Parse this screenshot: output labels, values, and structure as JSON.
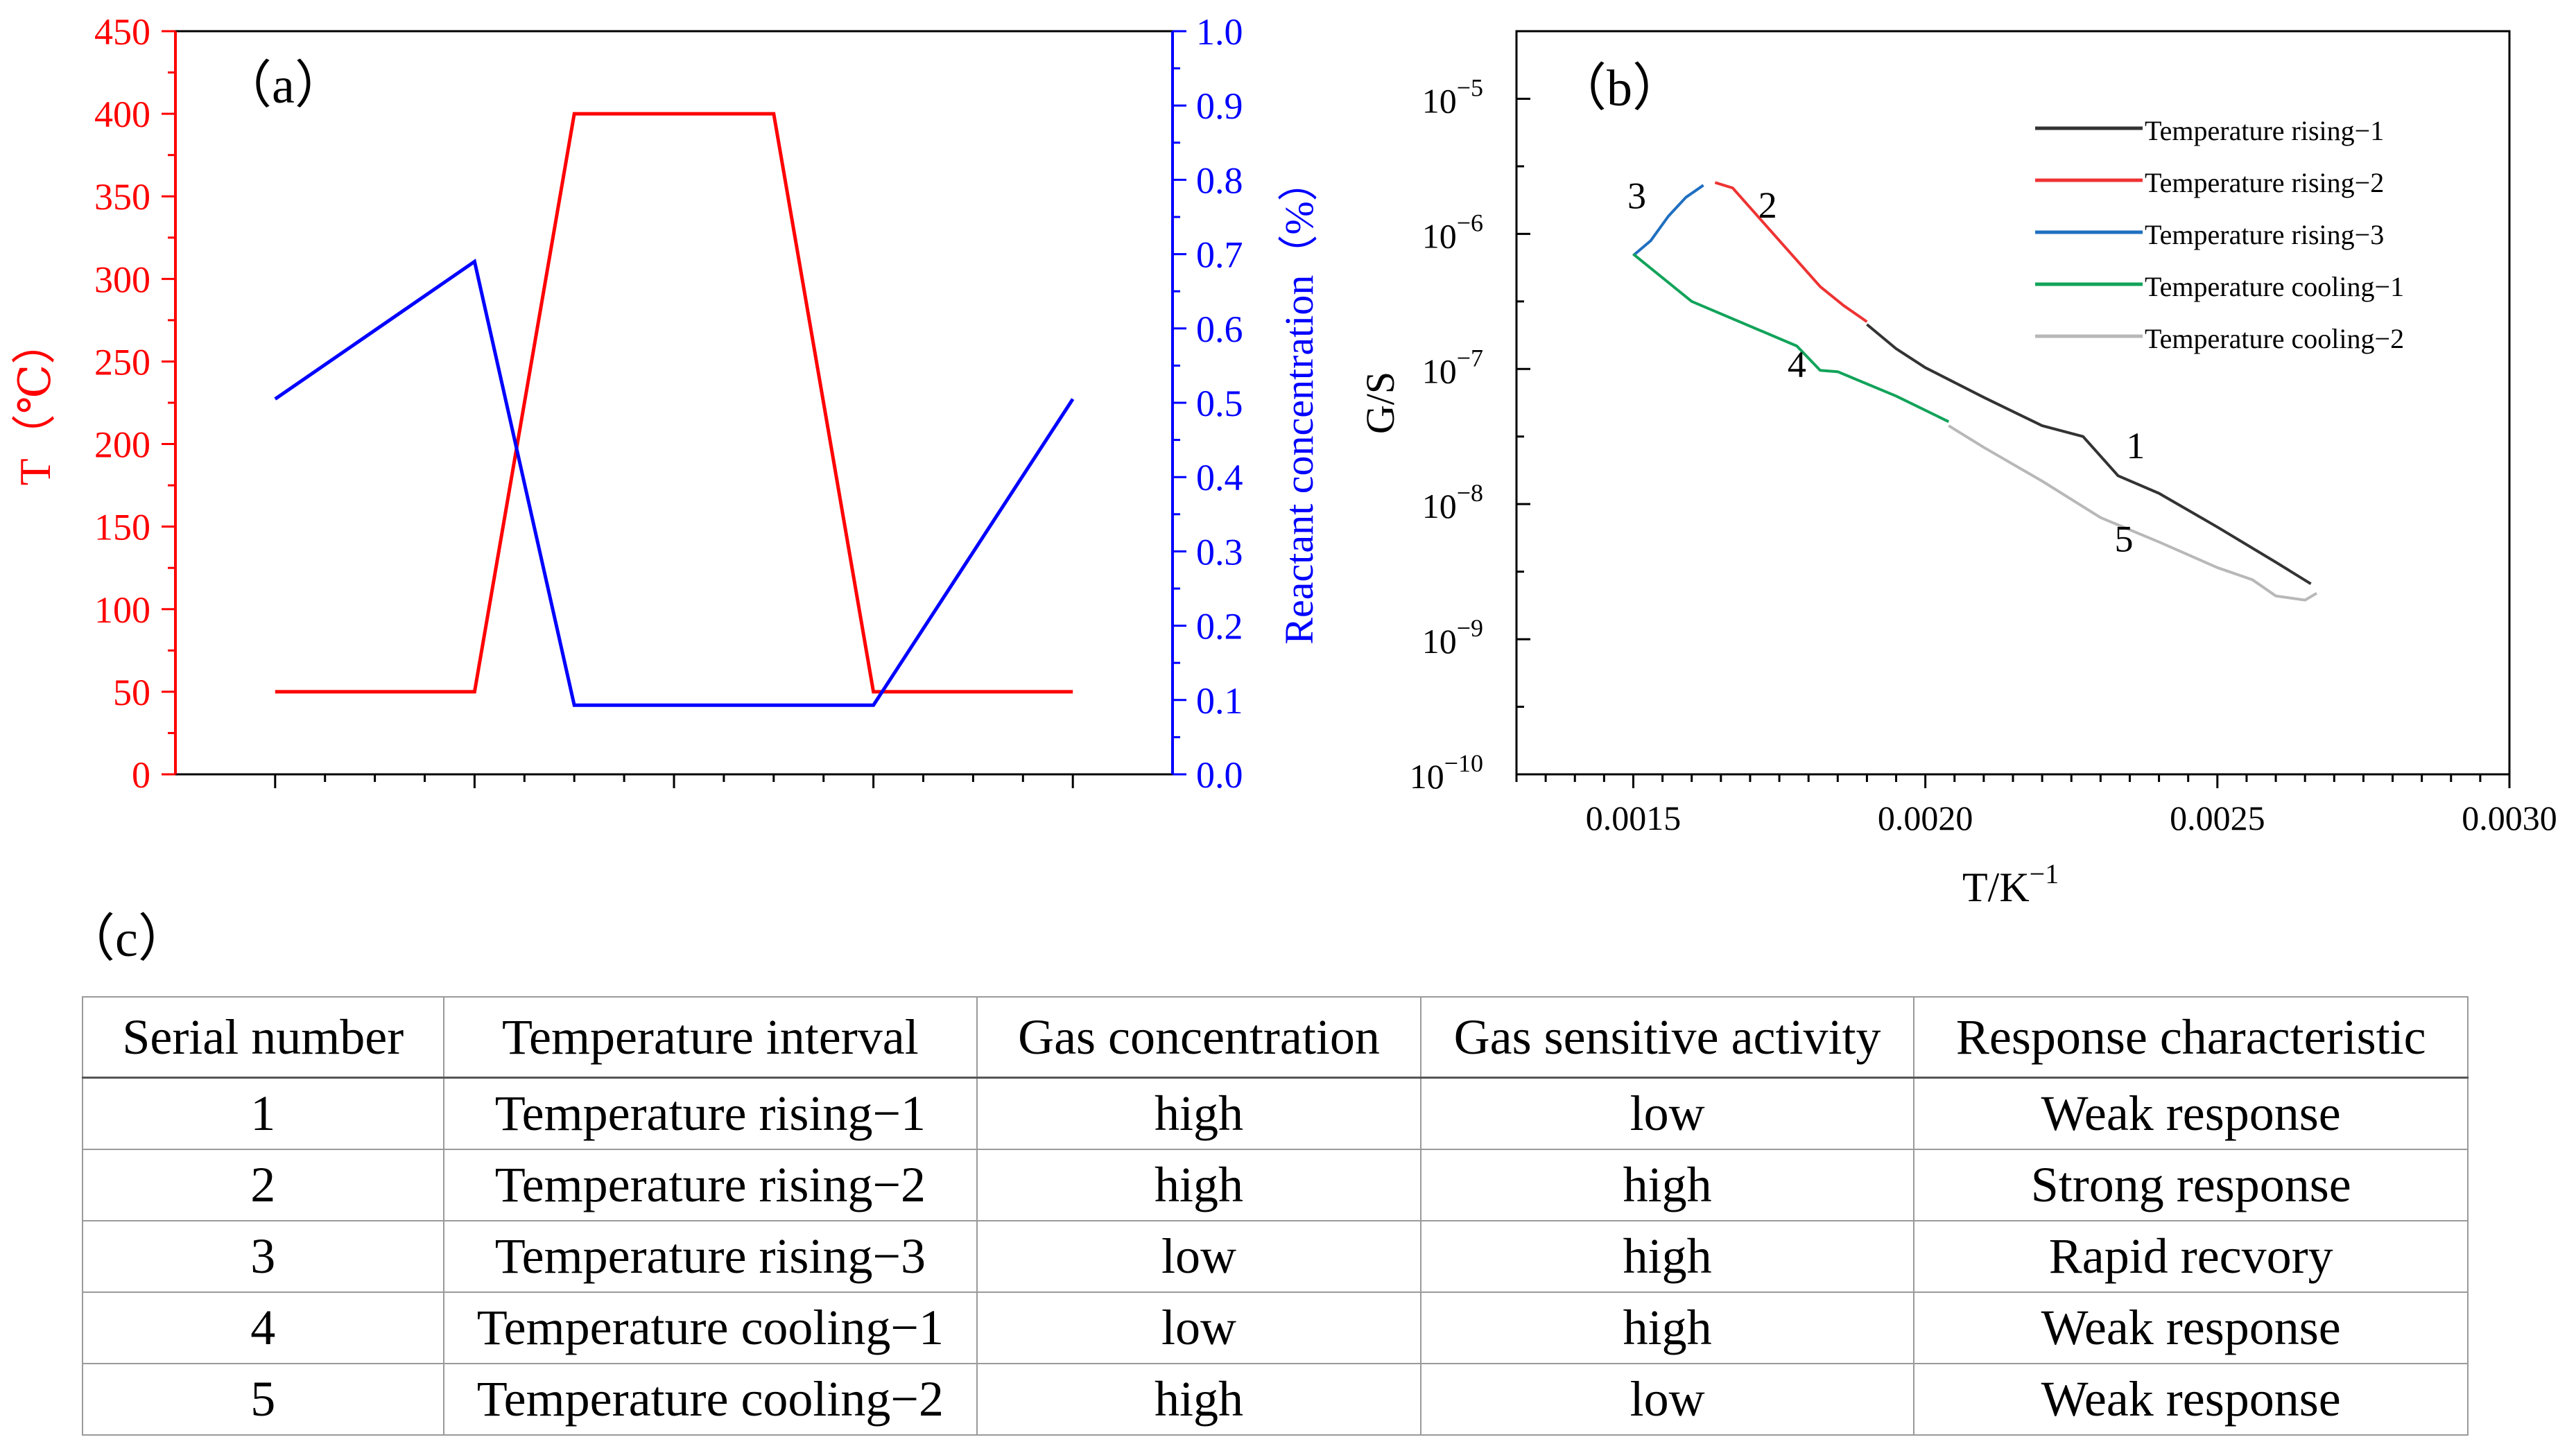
{
  "chart_data": [
    {
      "panel_label": "（a）",
      "type": "line",
      "x": [
        0,
        1,
        1.5,
        2.5,
        3,
        4
      ],
      "series": [
        {
          "name": "T (°C)",
          "axis": "left",
          "color": "#ff0000",
          "values": [
            50,
            50,
            400,
            400,
            50,
            50
          ]
        },
        {
          "name": "Reactant concentration (%)",
          "axis": "right",
          "color": "#0000ff",
          "values": [
            0.505,
            0.69,
            0.093,
            0.093,
            0.093,
            0.505
          ]
        }
      ],
      "left_axis": {
        "label": "T（℃）",
        "range": [
          0,
          450
        ],
        "ticks": [
          "0",
          "50",
          "100",
          "150",
          "200",
          "250",
          "300",
          "350",
          "400",
          "450"
        ]
      },
      "right_axis": {
        "label": "Reactant concentration（%）",
        "range": [
          0,
          1.0
        ],
        "ticks": [
          "0.0",
          "0.1",
          "0.2",
          "0.3",
          "0.4",
          "0.5",
          "0.6",
          "0.7",
          "0.8",
          "0.9",
          "1.0"
        ]
      },
      "xlim": [
        -0.5,
        4.5
      ]
    },
    {
      "panel_label": "（b）",
      "type": "line",
      "xlabel": "T/K",
      "xlabel_sup": "−1",
      "ylabel": "G/S",
      "xlim": [
        0.0013,
        0.003
      ],
      "x_ticks": [
        "0.0015",
        "0.0020",
        "0.0025",
        "0.0030"
      ],
      "y_log_range": [
        -10,
        -4.5
      ],
      "y_ticks": [
        {
          "base": "10",
          "exp": "−5"
        },
        {
          "base": "10",
          "exp": "−6"
        },
        {
          "base": "10",
          "exp": "−7"
        },
        {
          "base": "10",
          "exp": "−8"
        },
        {
          "base": "10",
          "exp": "−9"
        },
        {
          "base": "10",
          "exp": "−10"
        }
      ],
      "series": [
        {
          "name": "Temperature rising−1",
          "color": "#333333",
          "label": "1",
          "x": [
            0.0019,
            0.00195,
            0.002,
            0.0021,
            0.0022,
            0.00227,
            0.00233,
            0.0024,
            0.0025,
            0.0026,
            0.00266
          ],
          "log10y": [
            -6.67,
            -6.85,
            -6.99,
            -7.21,
            -7.42,
            -7.5,
            -7.79,
            -7.92,
            -8.17,
            -8.43,
            -8.59
          ]
        },
        {
          "name": "Temperature rising−2",
          "color": "#ee3333",
          "label": "2",
          "x": [
            0.00164,
            0.00167,
            0.00175,
            0.00182,
            0.00186,
            0.0019
          ],
          "log10y": [
            -5.62,
            -5.66,
            -6.05,
            -6.39,
            -6.53,
            -6.65
          ]
        },
        {
          "name": "Temperature rising−3",
          "color": "#1f6fc0",
          "label": "3",
          "x": [
            0.0015,
            0.00153,
            0.00156,
            0.00159,
            0.00162
          ],
          "log10y": [
            -6.16,
            -6.05,
            -5.87,
            -5.73,
            -5.64
          ]
        },
        {
          "name": "Temperature cooling−1",
          "color": "#12a35a",
          "label": "4",
          "x": [
            0.0015,
            0.0016,
            0.00178,
            0.00182,
            0.00185,
            0.00195,
            0.00204
          ],
          "log10y": [
            -6.15,
            -6.5,
            -6.83,
            -7.01,
            -7.02,
            -7.2,
            -7.39
          ]
        },
        {
          "name": "Temperature cooling−2",
          "color": "#b8b8b8",
          "label": "5",
          "x": [
            0.00204,
            0.0021,
            0.0022,
            0.0023,
            0.0024,
            0.0025,
            0.00256,
            0.0026,
            0.00265,
            0.00267
          ],
          "log10y": [
            -7.42,
            -7.58,
            -7.83,
            -8.1,
            -8.28,
            -8.47,
            -8.56,
            -8.68,
            -8.71,
            -8.66
          ]
        }
      ]
    }
  ],
  "table": {
    "label": "（c）",
    "headers": [
      "Serial number",
      "Temperature interval",
      "Gas concentration",
      "Gas sensitive activity",
      "Response characteristic"
    ],
    "rows": [
      [
        "1",
        "Temperature rising−1",
        "high",
        "low",
        "Weak response"
      ],
      [
        "2",
        "Temperature rising−2",
        "high",
        "high",
        "Strong response"
      ],
      [
        "3",
        "Temperature rising−3",
        "low",
        "high",
        "Rapid recvory"
      ],
      [
        "4",
        "Temperature cooling−1",
        "low",
        "high",
        "Weak response"
      ],
      [
        "5",
        "Temperature cooling−2",
        "high",
        "low",
        "Weak response"
      ]
    ]
  }
}
